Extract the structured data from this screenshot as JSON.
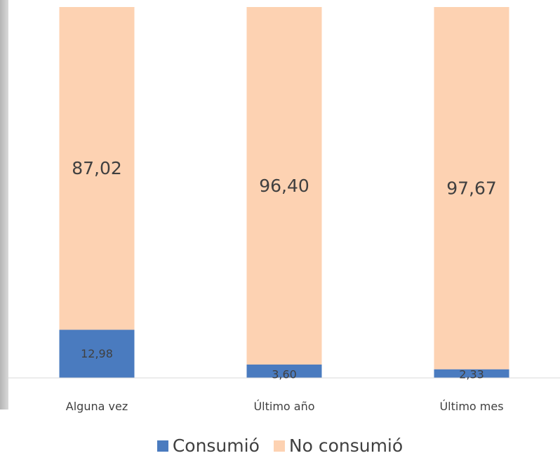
{
  "chart_data": {
    "type": "bar",
    "stacked": true,
    "categories": [
      "Alguna vez",
      "Último año",
      "Último mes"
    ],
    "series": [
      {
        "name": "Consumió",
        "values": [
          12.98,
          3.6,
          2.33
        ],
        "labels": [
          "12,98",
          "3,60",
          "2,33"
        ],
        "color": "#4a7bbf"
      },
      {
        "name": "No consumió",
        "values": [
          87.02,
          96.4,
          97.67
        ],
        "labels": [
          "87,02",
          "96,40",
          "97,67"
        ],
        "color": "#fdd2b2"
      }
    ],
    "ylim": [
      0,
      100
    ],
    "grid": false,
    "legend_position": "bottom"
  }
}
